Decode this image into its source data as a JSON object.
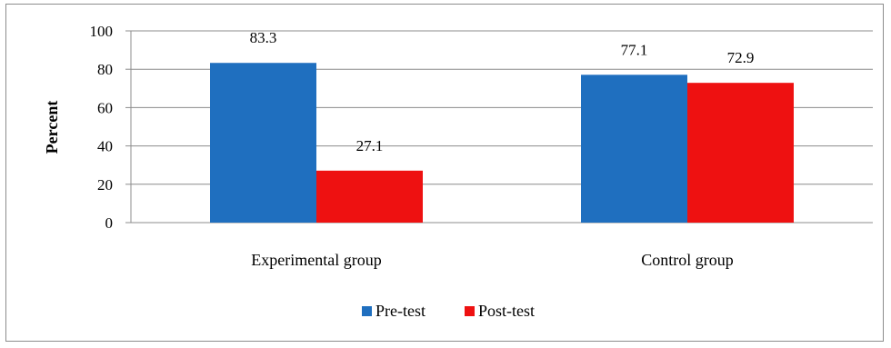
{
  "chart_data": {
    "type": "bar",
    "title": "",
    "xlabel": "",
    "ylabel": "Percent",
    "ylim": [
      0,
      100
    ],
    "yticks": [
      0,
      20,
      40,
      60,
      80,
      100
    ],
    "categories": [
      "Experimental group",
      "Control group"
    ],
    "series": [
      {
        "name": "Pre-test",
        "color": "#1f6fbf",
        "values": [
          83.3,
          77.1
        ],
        "labels": [
          "83.3",
          "77.1"
        ]
      },
      {
        "name": "Post-test",
        "color": "#ee1111",
        "values": [
          27.1,
          72.9
        ],
        "labels": [
          "27.1",
          "72.9"
        ]
      }
    ],
    "grid": true,
    "legend": "bottom-center"
  }
}
